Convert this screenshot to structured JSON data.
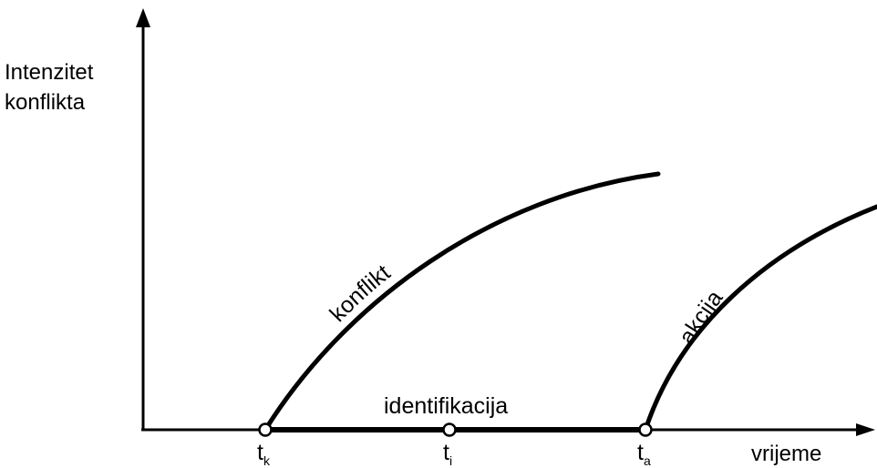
{
  "axes": {
    "y_label_lines": [
      "Intenzitet",
      "konflikta"
    ],
    "x_label": "vrijeme"
  },
  "curves": {
    "konflikt": "konflikt",
    "akcija": "akcija",
    "identifikacija": "identifikacija"
  },
  "points": [
    {
      "main": "t",
      "sub": "k"
    },
    {
      "main": "t",
      "sub": "i"
    },
    {
      "main": "t",
      "sub": "a"
    }
  ],
  "colors": {
    "ink": "#000000",
    "background": "#ffffff"
  }
}
